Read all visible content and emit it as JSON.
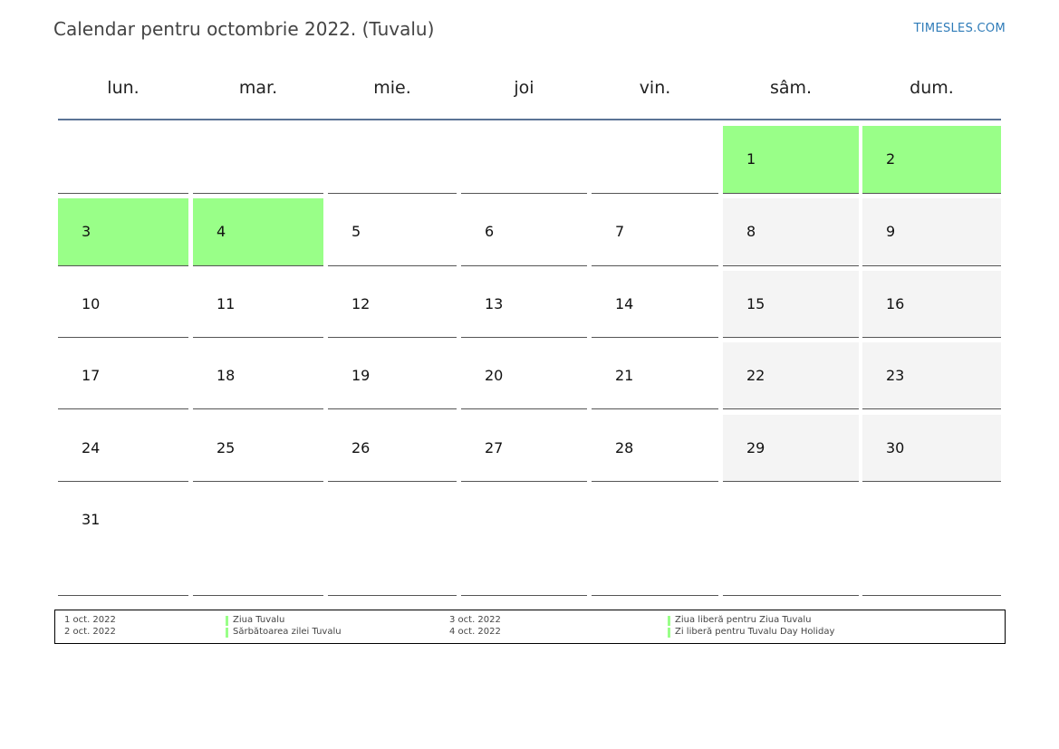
{
  "title": "Calendar pentru octombrie 2022. (Tuvalu)",
  "site": "TIMESLES.COM",
  "colors": {
    "holiday": "#99ff88",
    "weekend": "#f4f4f4",
    "header_line": "#5b7396",
    "link": "#2e7bb8"
  },
  "weekdays": [
    "lun.",
    "mar.",
    "mie.",
    "joi",
    "vin.",
    "sâm.",
    "dum."
  ],
  "weeks": [
    [
      null,
      null,
      null,
      null,
      null,
      {
        "day": "1",
        "holiday": true
      },
      {
        "day": "2",
        "holiday": true
      }
    ],
    [
      {
        "day": "3",
        "holiday": true
      },
      {
        "day": "4",
        "holiday": true
      },
      {
        "day": "5"
      },
      {
        "day": "6"
      },
      {
        "day": "7"
      },
      {
        "day": "8"
      },
      {
        "day": "9"
      }
    ],
    [
      {
        "day": "10"
      },
      {
        "day": "11"
      },
      {
        "day": "12"
      },
      {
        "day": "13"
      },
      {
        "day": "14"
      },
      {
        "day": "15"
      },
      {
        "day": "16"
      }
    ],
    [
      {
        "day": "17"
      },
      {
        "day": "18"
      },
      {
        "day": "19"
      },
      {
        "day": "20"
      },
      {
        "day": "21"
      },
      {
        "day": "22"
      },
      {
        "day": "23"
      }
    ],
    [
      {
        "day": "24"
      },
      {
        "day": "25"
      },
      {
        "day": "26"
      },
      {
        "day": "27"
      },
      {
        "day": "28"
      },
      {
        "day": "29"
      },
      {
        "day": "30"
      }
    ],
    [
      {
        "day": "31"
      },
      null,
      null,
      null,
      null,
      null,
      null
    ]
  ],
  "legend": [
    {
      "date": "1 oct. 2022",
      "name": "Ziua Tuvalu"
    },
    {
      "date": "2 oct. 2022",
      "name": "Sărbătoarea zilei Tuvalu"
    },
    {
      "date": "3 oct. 2022",
      "name": "Ziua liberă pentru Ziua Tuvalu"
    },
    {
      "date": "4 oct. 2022",
      "name": "Zi liberă pentru Tuvalu Day Holiday"
    }
  ]
}
